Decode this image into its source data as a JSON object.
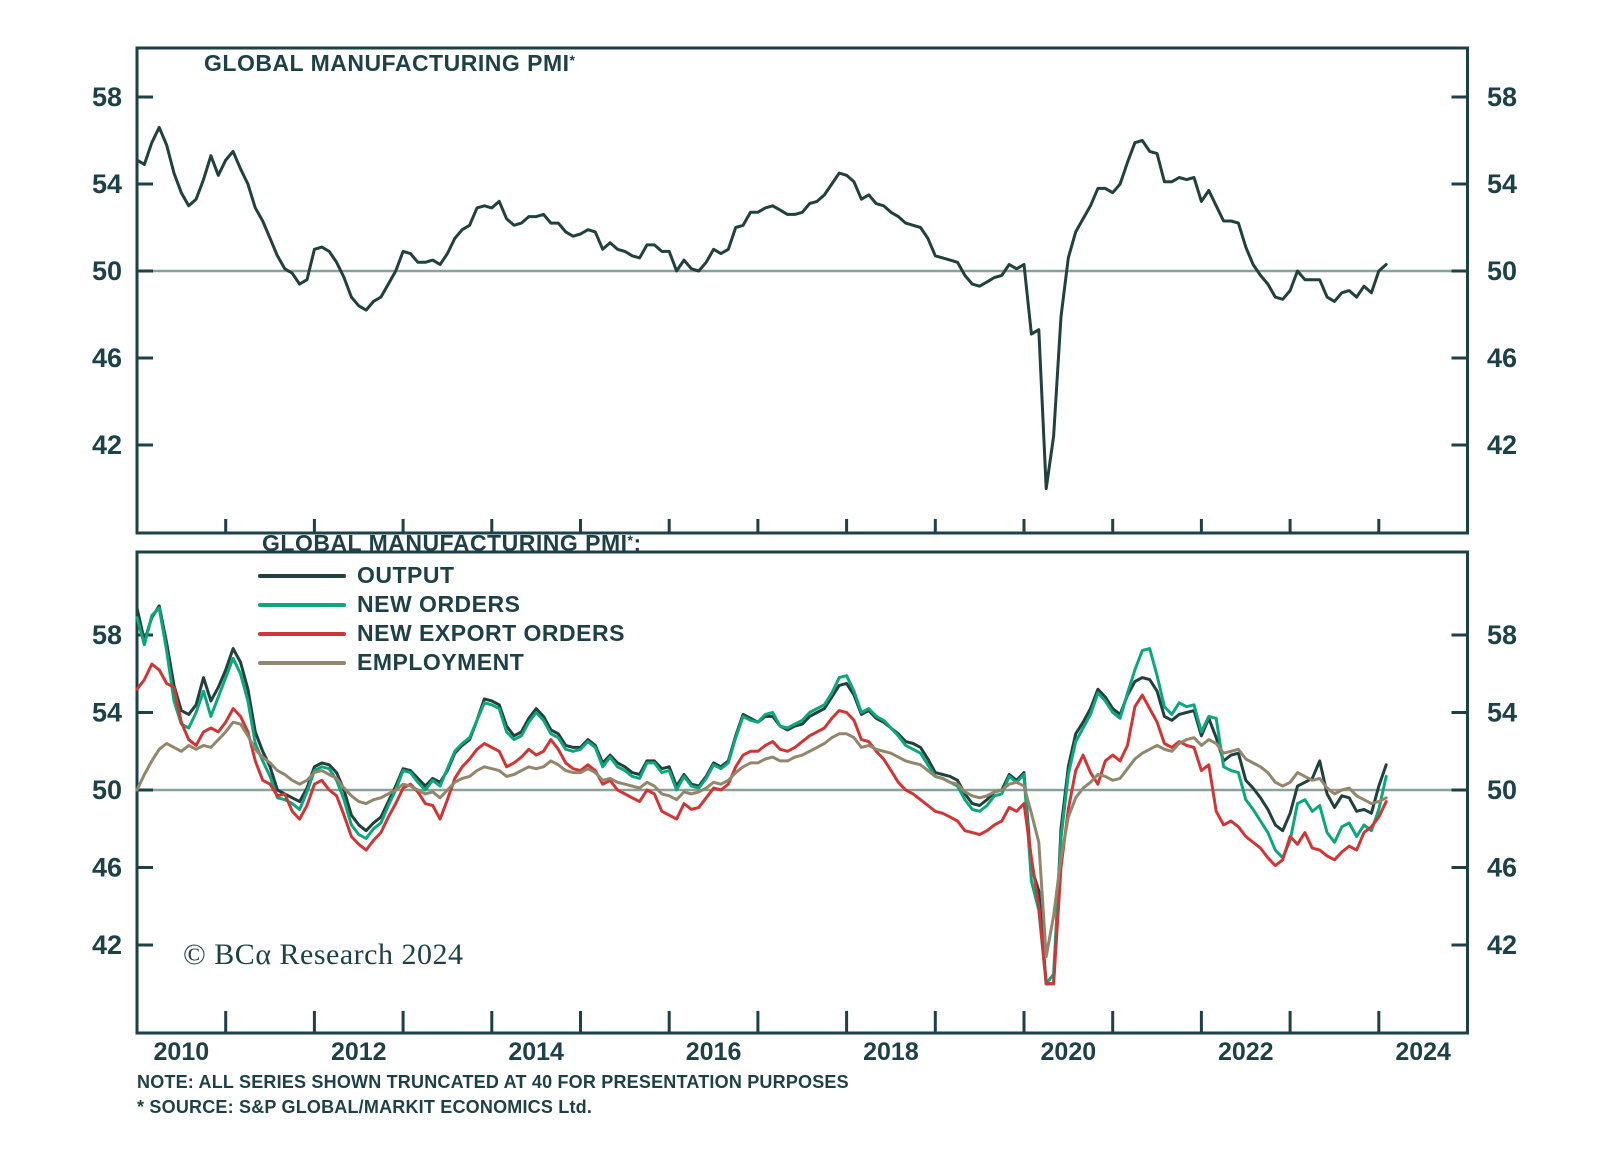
{
  "colors": {
    "axis": "#1e4148",
    "text": "#1e4148",
    "breakeven_gridline": "#8aa09b",
    "output": "#21413e",
    "new_orders": "#0ca77c",
    "new_export_orders": "#d23535",
    "employment": "#92866c"
  },
  "footer": {
    "copyright": "© BCα Research 2024",
    "note1": "NOTE: ALL SERIES SHOWN TRUNCATED AT 40 FOR PRESENTATION PURPOSES",
    "note2": "* SOURCE: S&P GLOBAL/MARKIT ECONOMICS Ltd."
  },
  "chart_data": [
    {
      "type": "line",
      "panel": "top",
      "title": "GLOBAL MANUFACTURING PMI",
      "title_superscript": "*",
      "x_start": "2010-01",
      "x_frequency": "monthly",
      "x_range_years": [
        2010,
        2025
      ],
      "yticks": [
        58,
        54,
        50,
        46,
        42
      ],
      "breakeven_line": 50,
      "truncation_floor": 40,
      "grid": "breakeven-only",
      "xtick_years": [
        2011,
        2012,
        2013,
        2014,
        2015,
        2016,
        2017,
        2018,
        2019,
        2020,
        2021,
        2022,
        2023,
        2024
      ],
      "xtick_labels": [
        "2010",
        "2012",
        "2014",
        "2016",
        "2018",
        "2020",
        "2022",
        "2024"
      ],
      "series": [
        {
          "name": "GLOBAL MANUFACTURING PMI",
          "color": "#21413e",
          "values": [
            55.1,
            54.9,
            55.9,
            56.6,
            55.8,
            54.5,
            53.6,
            53.0,
            53.3,
            54.2,
            55.3,
            54.4,
            55.1,
            55.5,
            54.7,
            54.0,
            52.9,
            52.3,
            51.5,
            50.7,
            50.1,
            49.9,
            49.4,
            49.6,
            51.0,
            51.1,
            50.9,
            50.4,
            49.7,
            48.8,
            48.4,
            48.2,
            48.6,
            48.8,
            49.4,
            50.0,
            50.9,
            50.8,
            50.4,
            50.4,
            50.5,
            50.3,
            50.8,
            51.5,
            51.9,
            52.1,
            52.9,
            53.0,
            52.9,
            53.2,
            52.4,
            52.1,
            52.2,
            52.5,
            52.5,
            52.6,
            52.2,
            52.2,
            51.8,
            51.6,
            51.7,
            51.9,
            51.8,
            51.0,
            51.3,
            51.0,
            50.9,
            50.7,
            50.6,
            51.2,
            51.2,
            50.9,
            50.9,
            50.0,
            50.5,
            50.1,
            50.0,
            50.4,
            51.0,
            50.8,
            51.0,
            52.0,
            52.1,
            52.7,
            52.7,
            52.9,
            53.0,
            52.8,
            52.6,
            52.6,
            52.7,
            53.1,
            53.2,
            53.5,
            54.0,
            54.5,
            54.4,
            54.1,
            53.3,
            53.5,
            53.1,
            53.0,
            52.7,
            52.5,
            52.2,
            52.1,
            52.0,
            51.5,
            50.7,
            50.6,
            50.5,
            50.4,
            49.8,
            49.4,
            49.3,
            49.5,
            49.7,
            49.8,
            50.3,
            50.1,
            50.3,
            47.1,
            47.3,
            40.0,
            42.4,
            47.9,
            50.6,
            51.8,
            52.4,
            53.0,
            53.8,
            53.8,
            53.6,
            54.0,
            55.0,
            55.9,
            56.0,
            55.5,
            55.4,
            54.1,
            54.1,
            54.3,
            54.2,
            54.3,
            53.2,
            53.7,
            53.0,
            52.3,
            52.3,
            52.2,
            51.1,
            50.3,
            49.8,
            49.4,
            48.8,
            48.7,
            49.1,
            50.0,
            49.6,
            49.6,
            49.6,
            48.8,
            48.6,
            49.0,
            49.1,
            48.8,
            49.3,
            49.0,
            50.0,
            50.3
          ]
        }
      ]
    },
    {
      "type": "line",
      "panel": "bottom",
      "legend_title": "GLOBAL MANUFACTURING PMI",
      "legend_superscript": "*",
      "legend_suffix": ":",
      "x_start": "2010-01",
      "x_frequency": "monthly",
      "x_range_years": [
        2010,
        2025
      ],
      "yticks": [
        58,
        54,
        50,
        46,
        42
      ],
      "breakeven_line": 50,
      "truncation_floor": 40,
      "grid": "breakeven-only",
      "xtick_years": [
        2011,
        2012,
        2013,
        2014,
        2015,
        2016,
        2017,
        2018,
        2019,
        2020,
        2021,
        2022,
        2023,
        2024
      ],
      "xtick_labels": [
        "2010",
        "2012",
        "2014",
        "2016",
        "2018",
        "2020",
        "2022",
        "2024"
      ],
      "series": [
        {
          "name": "OUTPUT",
          "color": "#21413e",
          "values": [
            59.4,
            57.7,
            58.9,
            59.5,
            57.6,
            55.4,
            54.1,
            53.9,
            54.4,
            55.8,
            54.6,
            55.3,
            56.2,
            57.3,
            56.6,
            55.2,
            53.0,
            52.0,
            51.2,
            50.0,
            49.8,
            49.6,
            49.4,
            50.1,
            51.2,
            51.4,
            51.3,
            50.9,
            50.0,
            48.7,
            48.2,
            47.9,
            48.3,
            48.6,
            49.4,
            50.2,
            51.1,
            51.0,
            50.6,
            50.2,
            50.6,
            50.4,
            51.0,
            51.9,
            52.3,
            52.6,
            53.6,
            54.7,
            54.6,
            54.4,
            53.3,
            52.8,
            53.0,
            53.7,
            54.2,
            53.8,
            53.1,
            52.9,
            52.3,
            52.2,
            52.2,
            52.6,
            52.3,
            51.4,
            51.8,
            51.4,
            51.2,
            50.9,
            50.8,
            51.5,
            51.5,
            51.1,
            51.2,
            50.2,
            50.8,
            50.3,
            50.2,
            50.7,
            51.4,
            51.2,
            51.5,
            52.8,
            53.9,
            53.7,
            53.5,
            53.8,
            53.8,
            53.3,
            53.1,
            53.3,
            53.4,
            53.8,
            54.0,
            54.2,
            54.8,
            55.4,
            55.5,
            54.9,
            53.9,
            54.1,
            53.7,
            53.5,
            53.2,
            52.9,
            52.5,
            52.4,
            52.2,
            51.6,
            50.9,
            50.8,
            50.7,
            50.5,
            49.8,
            49.3,
            49.2,
            49.5,
            49.9,
            50.0,
            50.8,
            50.5,
            50.9,
            46.0,
            44.8,
            40.0,
            40.0,
            48.0,
            51.2,
            52.9,
            53.5,
            54.2,
            55.2,
            54.8,
            54.2,
            53.9,
            54.9,
            55.6,
            55.8,
            55.7,
            55.1,
            53.8,
            53.6,
            53.9,
            54.0,
            54.1,
            52.8,
            53.7,
            52.7,
            51.5,
            51.8,
            51.9,
            50.5,
            50.1,
            49.6,
            49.0,
            48.2,
            47.9,
            48.8,
            50.2,
            50.4,
            50.6,
            51.5,
            49.8,
            49.1,
            49.7,
            49.6,
            48.9,
            49.0,
            48.8,
            50.2,
            51.3
          ]
        },
        {
          "name": "NEW ORDERS",
          "color": "#0ca77c",
          "values": [
            58.9,
            57.5,
            59.0,
            59.4,
            57.2,
            54.6,
            53.4,
            53.2,
            54.0,
            55.1,
            53.8,
            54.8,
            55.8,
            56.8,
            56.0,
            54.6,
            52.4,
            51.5,
            50.7,
            49.6,
            49.5,
            49.3,
            49.0,
            49.9,
            51.0,
            51.2,
            51.1,
            50.5,
            49.5,
            48.2,
            47.7,
            47.5,
            48.0,
            48.3,
            49.2,
            50.0,
            51.0,
            50.9,
            50.4,
            50.0,
            50.5,
            50.2,
            51.1,
            52.0,
            52.4,
            52.7,
            53.6,
            54.5,
            54.4,
            54.2,
            53.0,
            52.6,
            52.8,
            53.5,
            54.0,
            53.6,
            52.9,
            52.7,
            52.1,
            52.0,
            52.1,
            52.5,
            52.2,
            51.2,
            51.7,
            51.2,
            51.0,
            50.7,
            50.6,
            51.4,
            51.4,
            50.9,
            51.0,
            50.0,
            50.7,
            50.2,
            50.1,
            50.6,
            51.3,
            51.1,
            51.4,
            52.7,
            53.8,
            53.6,
            53.5,
            53.9,
            54.0,
            53.3,
            53.2,
            53.4,
            53.6,
            54.0,
            54.2,
            54.4,
            55.0,
            55.8,
            55.9,
            55.1,
            54.0,
            54.2,
            53.8,
            53.6,
            53.2,
            52.8,
            52.3,
            52.1,
            51.9,
            51.3,
            50.7,
            50.6,
            50.4,
            50.2,
            49.5,
            49.0,
            48.9,
            49.2,
            49.7,
            49.8,
            50.7,
            50.4,
            50.8,
            45.3,
            43.8,
            40.0,
            40.5,
            47.5,
            50.8,
            52.5,
            53.2,
            53.9,
            55.0,
            54.6,
            54.0,
            53.7,
            55.0,
            56.2,
            57.2,
            57.3,
            55.9,
            54.3,
            53.9,
            54.5,
            54.3,
            54.4,
            53.0,
            53.8,
            53.7,
            51.2,
            51.0,
            50.9,
            49.5,
            49.0,
            48.4,
            47.8,
            46.9,
            46.5,
            47.4,
            49.3,
            49.5,
            48.9,
            49.2,
            47.8,
            47.3,
            48.1,
            48.3,
            47.6,
            48.2,
            47.9,
            49.0,
            50.7
          ]
        },
        {
          "name": "NEW EXPORT ORDERS",
          "color": "#d23535",
          "values": [
            55.2,
            55.7,
            56.5,
            56.2,
            55.5,
            55.3,
            53.5,
            52.6,
            52.3,
            53.0,
            53.2,
            53.0,
            53.5,
            54.2,
            53.8,
            53.0,
            51.5,
            50.5,
            50.3,
            49.7,
            49.8,
            48.9,
            48.5,
            49.2,
            50.3,
            50.5,
            50.0,
            49.7,
            48.7,
            47.6,
            47.2,
            46.9,
            47.4,
            47.8,
            48.6,
            49.3,
            50.1,
            50.3,
            49.9,
            49.3,
            49.2,
            48.5,
            49.5,
            50.6,
            51.2,
            51.6,
            52.1,
            52.4,
            52.2,
            52.0,
            51.2,
            51.4,
            51.7,
            52.1,
            51.8,
            52.0,
            52.6,
            52.1,
            51.4,
            51.1,
            51.0,
            51.3,
            51.0,
            50.3,
            50.5,
            50.0,
            49.8,
            49.6,
            49.4,
            50.0,
            49.8,
            48.9,
            48.7,
            48.5,
            49.3,
            49.0,
            49.1,
            49.6,
            50.1,
            50.0,
            50.3,
            51.2,
            51.8,
            52.0,
            52.0,
            52.3,
            52.5,
            52.1,
            52.0,
            52.2,
            52.5,
            52.8,
            53.0,
            53.2,
            53.7,
            54.1,
            54.0,
            53.6,
            52.6,
            52.5,
            52.0,
            51.6,
            51.0,
            50.4,
            50.0,
            49.8,
            49.5,
            49.2,
            48.9,
            48.8,
            48.6,
            48.4,
            47.9,
            47.8,
            47.7,
            47.9,
            48.2,
            48.4,
            49.1,
            48.9,
            49.3,
            46.5,
            44.0,
            40.0,
            40.0,
            46.0,
            49.0,
            51.0,
            51.8,
            50.9,
            50.3,
            51.5,
            51.8,
            51.5,
            52.3,
            54.3,
            54.9,
            54.2,
            53.5,
            52.4,
            52.2,
            52.5,
            52.3,
            52.2,
            51.0,
            51.3,
            48.9,
            48.2,
            48.4,
            48.1,
            47.6,
            47.3,
            47.0,
            46.5,
            46.1,
            46.4,
            47.6,
            47.2,
            47.8,
            47.0,
            46.9,
            46.6,
            46.4,
            46.8,
            47.1,
            46.9,
            47.8,
            48.1,
            48.6,
            49.4
          ]
        },
        {
          "name": "EMPLOYMENT",
          "color": "#92866c",
          "values": [
            50.0,
            50.8,
            51.5,
            52.1,
            52.4,
            52.2,
            52.0,
            52.3,
            52.1,
            52.3,
            52.2,
            52.6,
            53.0,
            53.5,
            53.4,
            52.8,
            52.1,
            51.7,
            51.4,
            51.0,
            50.8,
            50.5,
            50.3,
            50.5,
            50.9,
            51.0,
            50.8,
            50.6,
            50.1,
            49.7,
            49.4,
            49.3,
            49.5,
            49.6,
            49.8,
            50.0,
            50.3,
            50.2,
            50.0,
            49.8,
            49.9,
            49.6,
            50.0,
            50.4,
            50.6,
            50.7,
            51.0,
            51.2,
            51.1,
            51.0,
            50.7,
            50.8,
            51.0,
            51.2,
            51.1,
            51.2,
            51.5,
            51.3,
            51.0,
            50.9,
            50.9,
            51.1,
            50.9,
            50.5,
            50.6,
            50.4,
            50.3,
            50.2,
            50.1,
            50.4,
            50.2,
            49.8,
            49.7,
            49.5,
            49.9,
            49.8,
            49.9,
            50.1,
            50.4,
            50.3,
            50.5,
            50.9,
            51.2,
            51.4,
            51.4,
            51.6,
            51.7,
            51.5,
            51.5,
            51.7,
            51.8,
            52.0,
            52.2,
            52.4,
            52.7,
            52.9,
            52.9,
            52.7,
            52.2,
            52.3,
            52.1,
            52.0,
            51.9,
            51.7,
            51.5,
            51.4,
            51.3,
            51.0,
            50.7,
            50.6,
            50.4,
            50.3,
            49.9,
            49.7,
            49.6,
            49.7,
            49.9,
            50.0,
            50.3,
            50.4,
            50.2,
            48.8,
            47.3,
            41.4,
            43.5,
            46.5,
            48.6,
            49.6,
            50.1,
            50.4,
            50.8,
            50.7,
            50.5,
            50.6,
            51.1,
            51.6,
            51.9,
            52.1,
            52.3,
            52.1,
            52.0,
            52.4,
            52.6,
            52.7,
            52.3,
            52.6,
            52.4,
            51.9,
            52.0,
            52.1,
            51.6,
            51.4,
            51.2,
            50.9,
            50.4,
            50.2,
            50.4,
            50.9,
            50.7,
            50.5,
            50.6,
            50.1,
            49.8,
            50.0,
            50.1,
            49.7,
            49.5,
            49.3,
            49.4,
            49.6
          ]
        }
      ]
    }
  ]
}
